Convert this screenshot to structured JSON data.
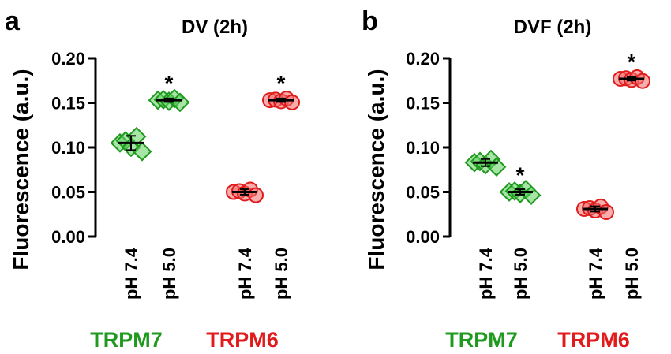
{
  "colors": {
    "trpm7": "#1f9a1f",
    "trpm7_fill": "#5fd05f",
    "trpm6": "#e01b1b",
    "trpm6_fill": "#f36a6a"
  },
  "marker_shapes": {
    "trpm7": "diamond",
    "trpm6": "circle"
  },
  "chart_data": [
    {
      "type": "scatter",
      "panel": "a",
      "title": "DV (2h)",
      "ylabel": "Fluorescence (a.u.)",
      "ylim": [
        0,
        0.2
      ],
      "yticks": [
        "0.00",
        "0.05",
        "0.10",
        "0.15",
        "0.20"
      ],
      "categories": [
        "pH 7.4",
        "pH 5.0",
        "pH 7.4",
        "pH 5.0"
      ],
      "groups": [
        {
          "name": "TRPM7",
          "color_key": "trpm7",
          "categories": [
            "pH 7.4",
            "pH 5.0"
          ]
        },
        {
          "name": "TRPM6",
          "color_key": "trpm6",
          "categories": [
            "pH 7.4",
            "pH 5.0"
          ]
        }
      ],
      "series": [
        {
          "group": "TRPM7",
          "category": "pH 7.4",
          "mean": 0.105,
          "sd": 0.008,
          "significant": false
        },
        {
          "group": "TRPM7",
          "category": "pH 5.0",
          "mean": 0.153,
          "sd": 0.002,
          "significant": true
        },
        {
          "group": "TRPM6",
          "category": "pH 7.4",
          "mean": 0.05,
          "sd": 0.003,
          "significant": false
        },
        {
          "group": "TRPM6",
          "category": "pH 5.0",
          "mean": 0.153,
          "sd": 0.002,
          "significant": true
        }
      ],
      "annotation": "*"
    },
    {
      "type": "scatter",
      "panel": "b",
      "title": "DVF (2h)",
      "ylabel": "Fluorescence (a.u.)",
      "ylim": [
        0,
        0.2
      ],
      "yticks": [
        "0.00",
        "0.05",
        "0.10",
        "0.15",
        "0.20"
      ],
      "categories": [
        "pH 7.4",
        "pH 5.0",
        "pH 7.4",
        "pH 5.0"
      ],
      "groups": [
        {
          "name": "TRPM7",
          "color_key": "trpm7",
          "categories": [
            "pH 7.4",
            "pH 5.0"
          ]
        },
        {
          "name": "TRPM6",
          "color_key": "trpm6",
          "categories": [
            "pH 7.4",
            "pH 5.0"
          ]
        }
      ],
      "series": [
        {
          "group": "TRPM7",
          "category": "pH 7.4",
          "mean": 0.083,
          "sd": 0.004,
          "significant": false
        },
        {
          "group": "TRPM7",
          "category": "pH 5.0",
          "mean": 0.05,
          "sd": 0.003,
          "significant": true
        },
        {
          "group": "TRPM6",
          "category": "pH 7.4",
          "mean": 0.031,
          "sd": 0.003,
          "significant": false
        },
        {
          "group": "TRPM6",
          "category": "pH 5.0",
          "mean": 0.177,
          "sd": 0.002,
          "significant": true
        }
      ],
      "annotation": "*"
    }
  ]
}
